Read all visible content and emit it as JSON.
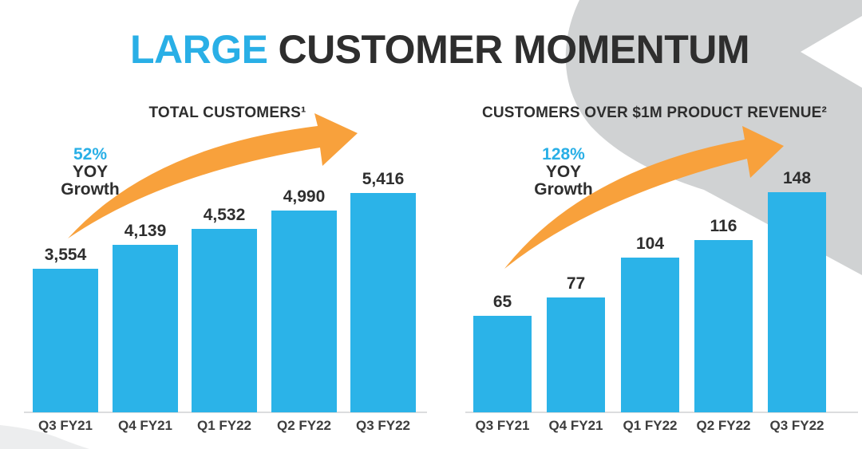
{
  "title": {
    "highlight": "LARGE",
    "rest": "CUSTOMER MOMENTUM"
  },
  "colors": {
    "accent_cyan": "#29AFE6",
    "bar_cyan": "#2BB3E8",
    "arrow_orange": "#F8A13C",
    "ink": "#2E2E2E",
    "label_ink": "#3D3D3D",
    "band_gray": "#D0D2D3",
    "corner_gray": "#ECEDEE",
    "axis_gray": "#DCDDDE"
  },
  "chart_data": [
    {
      "type": "bar",
      "title": "TOTAL CUSTOMERS¹",
      "growth_callout": {
        "pct": "52%",
        "label": "YOY Growth"
      },
      "categories": [
        "Q3 FY21",
        "Q4 FY21",
        "Q1 FY22",
        "Q2 FY22",
        "Q3 FY22"
      ],
      "values": [
        3554,
        4139,
        4532,
        4990,
        5416
      ],
      "value_labels": [
        "3,554",
        "4,139",
        "4,532",
        "4,990",
        "5,416"
      ],
      "ylim": [
        0,
        5416
      ],
      "grid": false,
      "y_axis_visible": false,
      "annotation": "orange upward growth arrow"
    },
    {
      "type": "bar",
      "title": "CUSTOMERS OVER $1M PRODUCT REVENUE²",
      "growth_callout": {
        "pct": "128%",
        "label": "YOY Growth"
      },
      "categories": [
        "Q3 FY21",
        "Q4 FY21",
        "Q1 FY22",
        "Q2 FY22",
        "Q3 FY22"
      ],
      "values": [
        65,
        77,
        104,
        116,
        148
      ],
      "value_labels": [
        "65",
        "77",
        "104",
        "116",
        "148"
      ],
      "ylim": [
        0,
        148
      ],
      "grid": false,
      "y_axis_visible": false,
      "annotation": "orange upward growth arrow"
    }
  ]
}
